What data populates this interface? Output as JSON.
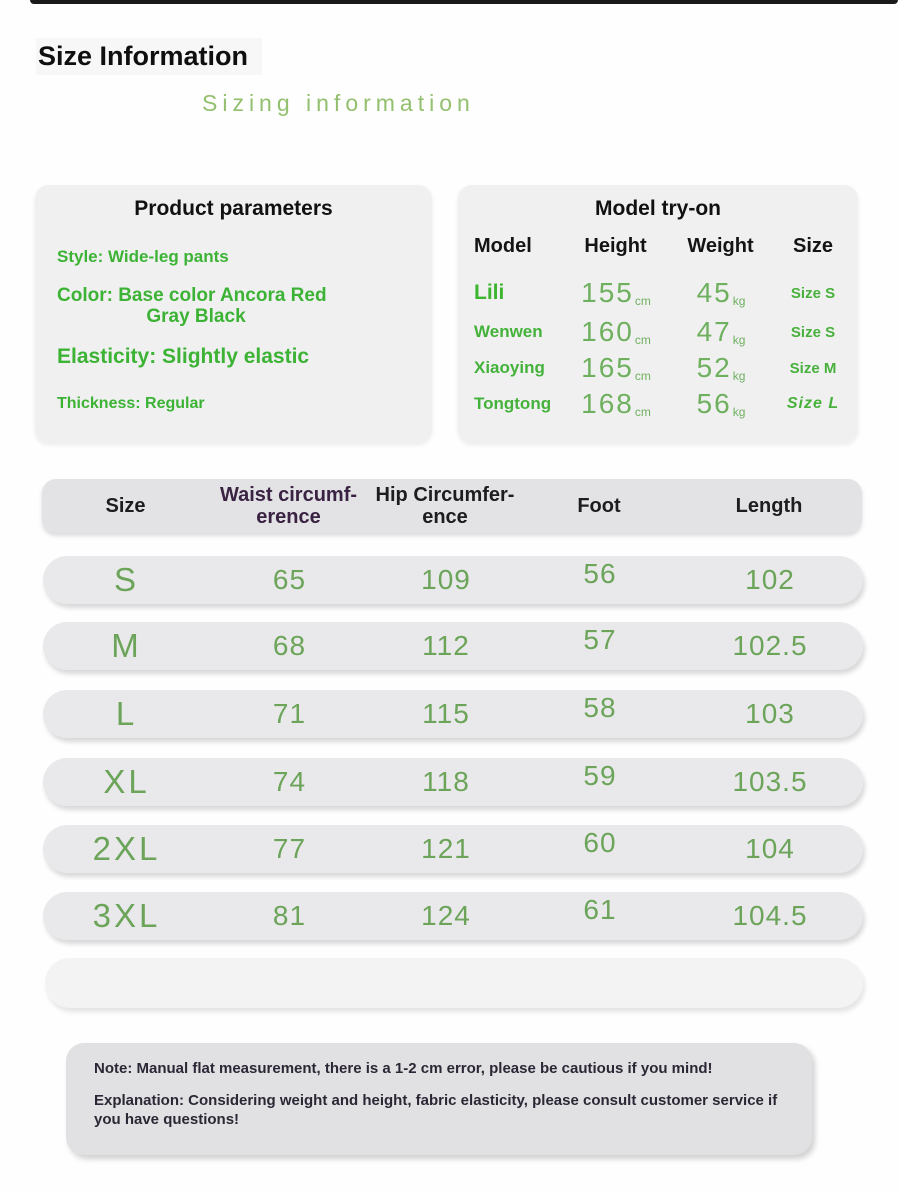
{
  "colors": {
    "accent_green": "#3cb334",
    "soft_green": "#6ca45a",
    "light_green": "#93c06e",
    "header_purple": "#3a2342",
    "note_text": "#2c2735"
  },
  "header": {
    "title": "Size Information",
    "subtitle": "Sizing information"
  },
  "product_parameters": {
    "title": "Product parameters",
    "style": "Style: Wide-leg pants",
    "color_line1": "Color: Base color Ancora Red",
    "color_line2": "Gray Black",
    "elasticity": "Elasticity: Slightly elastic",
    "thickness": "Thickness: Regular"
  },
  "model_tryon": {
    "title": "Model try-on",
    "col_model": "Model",
    "col_height": "Height",
    "col_weight": "Weight",
    "col_size": "Size",
    "rows": [
      {
        "model": "Lili",
        "height": "155",
        "height_unit": "cm",
        "weight": "45",
        "weight_unit": "kg",
        "size": "Size S"
      },
      {
        "model": "Wenwen",
        "height": "160",
        "height_unit": "cm",
        "weight": "47",
        "weight_unit": "kg",
        "size": "Size S"
      },
      {
        "model": "Xiaoying",
        "height": "165",
        "height_unit": "cm",
        "weight": "52",
        "weight_unit": "kg",
        "size": "Size M"
      },
      {
        "model": "Tongtong",
        "height": "168",
        "height_unit": "cm",
        "weight": "56",
        "weight_unit": "kg",
        "size": "Size L"
      }
    ]
  },
  "size_table": {
    "headers": [
      {
        "line1": "Size",
        "line2": ""
      },
      {
        "line1": "Waist circumf-",
        "line2": "erence"
      },
      {
        "line1": "Hip Circumfer-",
        "line2": "ence"
      },
      {
        "line1": "Foot",
        "line2": ""
      },
      {
        "line1": "Length",
        "line2": ""
      }
    ],
    "rows": [
      {
        "size": "S",
        "waist": "65",
        "hip": "109",
        "foot": "56",
        "length": "102"
      },
      {
        "size": "M",
        "waist": "68",
        "hip": "112",
        "foot": "57",
        "length": "102.5"
      },
      {
        "size": "L",
        "waist": "71",
        "hip": "115",
        "foot": "58",
        "length": "103"
      },
      {
        "size": "XL",
        "waist": "74",
        "hip": "118",
        "foot": "59",
        "length": "103.5"
      },
      {
        "size": "2XL",
        "waist": "77",
        "hip": "121",
        "foot": "60",
        "length": "104"
      },
      {
        "size": "3XL",
        "waist": "81",
        "hip": "124",
        "foot": "61",
        "length": "104.5"
      }
    ]
  },
  "notes": {
    "note": "Note: Manual flat measurement, there is a 1-2 cm error, please be cautious if you mind!",
    "explanation": "Explanation: Considering weight and height, fabric elasticity, please consult customer service if you have questions!"
  }
}
